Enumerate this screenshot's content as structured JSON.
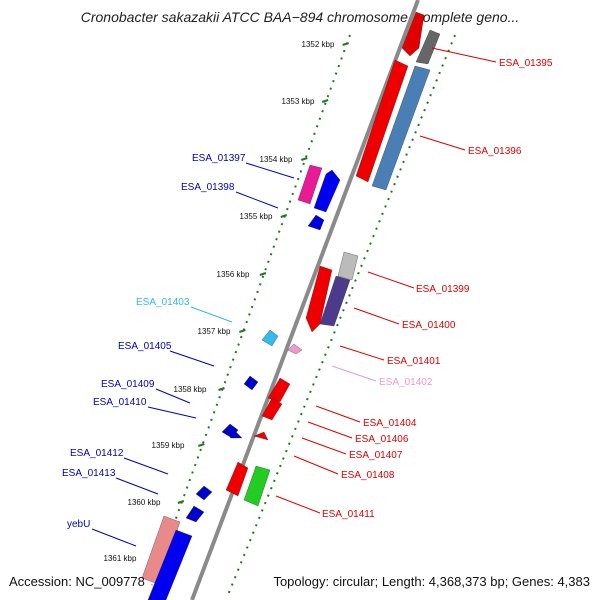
{
  "title": "Cronobacter sakazakii ATCC BAA−894 chromosome, complete geno...",
  "footer": {
    "accession": "Accession: NC_009778",
    "topology": "Topology: circular; Length: 4,368,373 bp; Genes: 4,383"
  },
  "colors": {
    "forward_label": "#dd0000",
    "reverse_label": "#0000bb",
    "backbone": "#8a8a8a",
    "tick": "#1f7a1f"
  },
  "ticks": [
    "1352 kbp",
    "1353 kbp",
    "1354 kbp",
    "1355 kbp",
    "1356 kbp",
    "1357 kbp",
    "1358 kbp",
    "1359 kbp",
    "1360 kbp",
    "1361 kbp"
  ],
  "labels": [
    {
      "text": "ESA_01395",
      "side": "right",
      "color": "#dd0000"
    },
    {
      "text": "ESA_01396",
      "side": "right",
      "color": "#dd0000"
    },
    {
      "text": "ESA_01397",
      "side": "left",
      "color": "#0000bb"
    },
    {
      "text": "ESA_01398",
      "side": "left",
      "color": "#0000bb"
    },
    {
      "text": "ESA_01399",
      "side": "right",
      "color": "#dd0000"
    },
    {
      "text": "ESA_01403",
      "side": "left",
      "color": "#33bbdd"
    },
    {
      "text": "ESA_01400",
      "side": "right",
      "color": "#dd0000"
    },
    {
      "text": "ESA_01405",
      "side": "left",
      "color": "#0000bb"
    },
    {
      "text": "ESA_01401",
      "side": "right",
      "color": "#dd0000"
    },
    {
      "text": "ESA_01402",
      "side": "right",
      "color": "#ee99cc"
    },
    {
      "text": "ESA_01409",
      "side": "left",
      "color": "#0000bb"
    },
    {
      "text": "ESA_01410",
      "side": "left",
      "color": "#0000bb"
    },
    {
      "text": "ESA_01404",
      "side": "right",
      "color": "#dd0000"
    },
    {
      "text": "ESA_01406",
      "side": "right",
      "color": "#dd0000"
    },
    {
      "text": "ESA_01407",
      "side": "right",
      "color": "#dd0000"
    },
    {
      "text": "ESA_01408",
      "side": "right",
      "color": "#dd0000"
    },
    {
      "text": "ESA_01412",
      "side": "left",
      "color": "#0000bb"
    },
    {
      "text": "ESA_01413",
      "side": "left",
      "color": "#0000bb"
    },
    {
      "text": "ESA_01411",
      "side": "right",
      "color": "#dd0000"
    },
    {
      "text": "yebU",
      "side": "left",
      "color": "#0000bb"
    }
  ]
}
